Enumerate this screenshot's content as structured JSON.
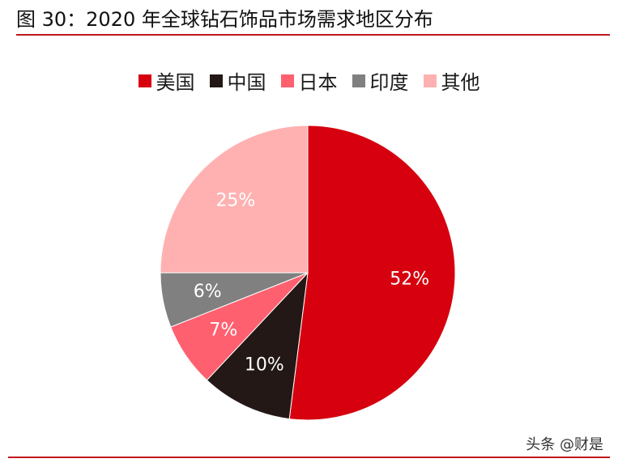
{
  "figure": {
    "title": "图 30：2020 年全球钻石饰品市场需求地区分布",
    "watermark": "头条 @财是"
  },
  "chart_data": {
    "type": "pie",
    "title": "",
    "legend_position": "top",
    "slices": [
      {
        "label": "美国",
        "value": 52,
        "value_label": "52%",
        "color": "#d6000f",
        "label_color": "#ffffff"
      },
      {
        "label": "中国",
        "value": 10,
        "value_label": "10%",
        "color": "#231815",
        "label_color": "#ffffff"
      },
      {
        "label": "日本",
        "value": 7,
        "value_label": "7%",
        "color": "#ff6070",
        "label_color": "#ffffff"
      },
      {
        "label": "印度",
        "value": 6,
        "value_label": "6%",
        "color": "#808080",
        "label_color": "#ffffff"
      },
      {
        "label": "其他",
        "value": 25,
        "value_label": "25%",
        "color": "#ffb1b1",
        "label_color": "#ffffff"
      }
    ]
  }
}
